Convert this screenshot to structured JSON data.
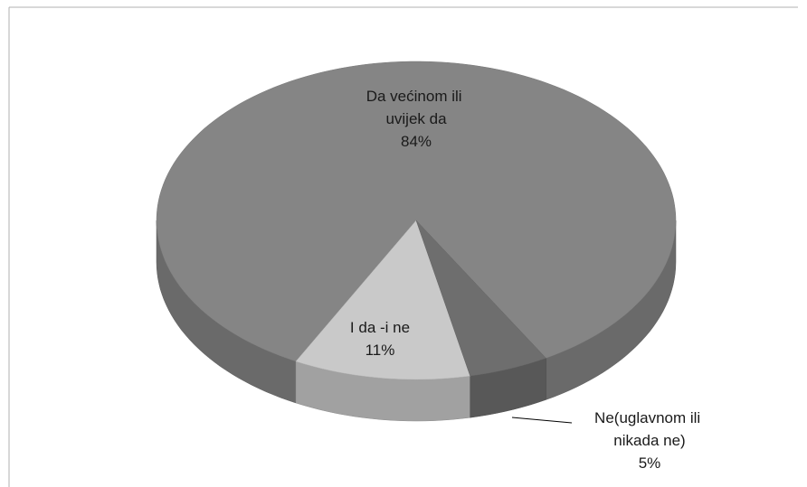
{
  "chart_data": {
    "type": "pie",
    "categories": [
      "Da većinom ili uvijek da",
      "I da -i ne",
      "Ne(uglavnom ili nikada ne)"
    ],
    "values": [
      84,
      11,
      5
    ],
    "value_labels": [
      "84%",
      "11%",
      "5%"
    ],
    "colors": [
      "#858585",
      "#c9c9c9",
      "#6e6e6e"
    ]
  }
}
